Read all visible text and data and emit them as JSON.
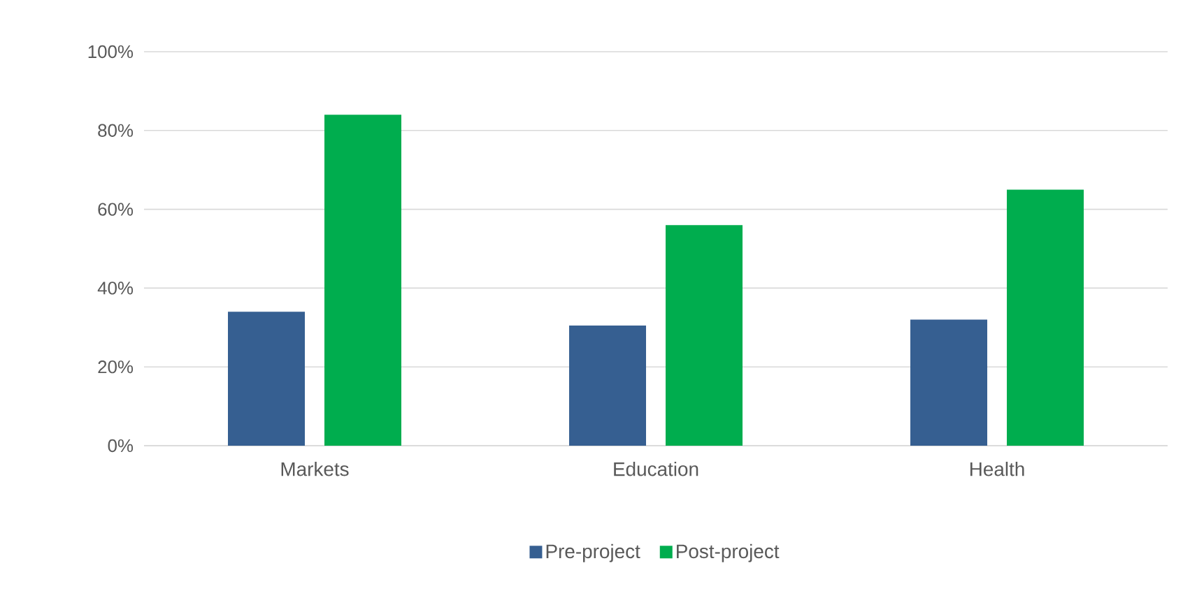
{
  "chart_data": {
    "type": "bar",
    "categories": [
      "Markets",
      "Education",
      "Health"
    ],
    "series": [
      {
        "name": "Pre-project",
        "color": "#365f91",
        "values": [
          34,
          30.5,
          32
        ]
      },
      {
        "name": "Post-project",
        "color": "#00ad4e",
        "values": [
          84,
          56,
          65
        ]
      }
    ],
    "ylim": [
      0,
      100
    ],
    "yticks": [
      {
        "value": 0,
        "label": "0%"
      },
      {
        "value": 20,
        "label": "20%"
      },
      {
        "value": 40,
        "label": "40%"
      },
      {
        "value": 60,
        "label": "60%"
      },
      {
        "value": 80,
        "label": "80%"
      },
      {
        "value": 100,
        "label": "100%"
      }
    ],
    "grid": "y",
    "legend": "bottom"
  }
}
